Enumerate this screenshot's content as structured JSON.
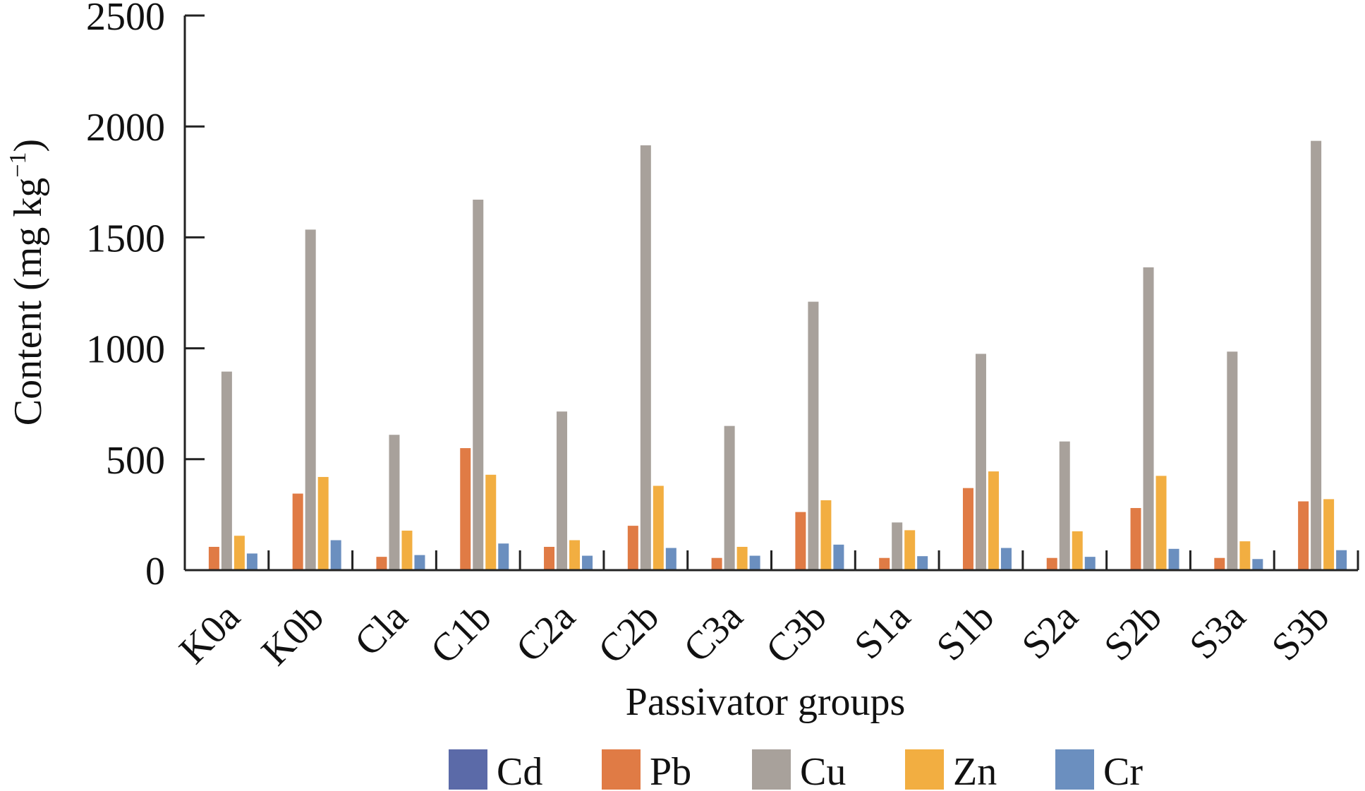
{
  "chart_data": {
    "type": "bar",
    "xlabel": "Passivator groups",
    "ylabel_main": "Content (mg kg",
    "ylabel_sup": "−1",
    "ylabel_close": ")",
    "ylim": [
      0,
      2500
    ],
    "yticks": [
      0,
      500,
      1000,
      1500,
      2000,
      2500
    ],
    "ytick_labels": [
      "0",
      "500",
      "1000",
      "1500",
      "2000",
      "2500"
    ],
    "legend_position": "bottom",
    "grid": false,
    "categories": [
      "K0a",
      "K0b",
      "Cla",
      "C1b",
      "C2a",
      "C2b",
      "C3a",
      "C3b",
      "S1a",
      "S1b",
      "S2a",
      "S2b",
      "S3a",
      "S3b"
    ],
    "series": [
      {
        "name": "Cd",
        "color": "#5b6aa8",
        "values": [
          1,
          1,
          1,
          1,
          1,
          1,
          1,
          1,
          1,
          1,
          1,
          1,
          1,
          1
        ]
      },
      {
        "name": "Pb",
        "color": "#e07b45",
        "values": [
          105,
          345,
          60,
          550,
          105,
          200,
          55,
          262,
          55,
          370,
          55,
          280,
          55,
          310
        ]
      },
      {
        "name": "Cu",
        "color": "#a8a19b",
        "values": [
          895,
          1535,
          610,
          1670,
          715,
          1915,
          650,
          1210,
          215,
          975,
          580,
          1365,
          985,
          1935
        ]
      },
      {
        "name": "Zn",
        "color": "#f2ae41",
        "values": [
          155,
          420,
          178,
          430,
          135,
          380,
          105,
          315,
          180,
          445,
          175,
          425,
          130,
          320
        ]
      },
      {
        "name": "Cr",
        "color": "#6b8fbf",
        "values": [
          75,
          135,
          68,
          120,
          65,
          100,
          65,
          115,
          63,
          100,
          60,
          96,
          50,
          90
        ]
      }
    ]
  }
}
